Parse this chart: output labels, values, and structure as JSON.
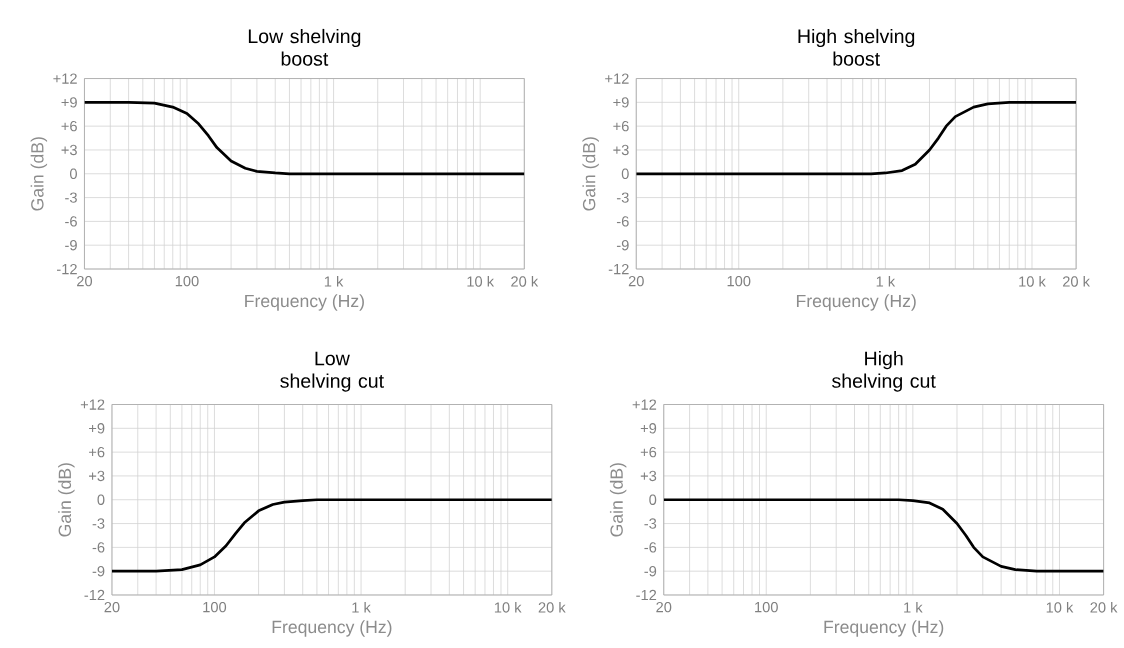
{
  "chart_data": [
    {
      "type": "line",
      "title": "Low shelving boost",
      "xlabel": "Frequency (Hz)",
      "ylabel": "Gain (dB)",
      "log": "x",
      "grid": true,
      "xlim": [
        20,
        20000
      ],
      "ylim": [
        -12,
        12
      ],
      "xticks": [
        20,
        100,
        {
          "value": 1000,
          "label": "1 k"
        },
        {
          "value": 10000,
          "label": "10 k"
        },
        {
          "value": 20000,
          "label": "20 k"
        }
      ],
      "yticks": [
        -12,
        -9,
        -6,
        -3,
        0,
        {
          "value": 3,
          "label": "+3"
        },
        {
          "value": 6,
          "label": "+6"
        },
        {
          "value": 9,
          "label": "+9"
        },
        {
          "value": 12,
          "label": "+12"
        }
      ],
      "x": [
        20,
        40,
        60,
        80,
        100,
        120,
        140,
        160,
        200,
        250,
        300,
        400,
        500,
        20000
      ],
      "series": [
        {
          "color": "#000000",
          "values": [
            9,
            9,
            8.9,
            8.4,
            7.6,
            6.3,
            4.8,
            3.3,
            1.6,
            0.7,
            0.3,
            0.1,
            0,
            0
          ]
        }
      ]
    },
    {
      "type": "line",
      "title": "High shelving boost",
      "xlabel": "Frequency (Hz)",
      "ylabel": "Gain (dB)",
      "log": "x",
      "grid": true,
      "xlim": [
        20,
        20000
      ],
      "ylim": [
        -12,
        12
      ],
      "xticks": [
        20,
        100,
        {
          "value": 1000,
          "label": "1 k"
        },
        {
          "value": 10000,
          "label": "10 k"
        },
        {
          "value": 20000,
          "label": "20 k"
        }
      ],
      "yticks": [
        -12,
        -9,
        -6,
        -3,
        0,
        {
          "value": 3,
          "label": "+3"
        },
        {
          "value": 6,
          "label": "+6"
        },
        {
          "value": 9,
          "label": "+9"
        },
        {
          "value": 12,
          "label": "+12"
        }
      ],
      "x": [
        20,
        800,
        1000,
        1300,
        1600,
        2000,
        2300,
        2600,
        3000,
        4000,
        5000,
        7000,
        20000
      ],
      "series": [
        {
          "color": "#000000",
          "values": [
            0,
            0,
            0.1,
            0.4,
            1.2,
            3,
            4.5,
            6,
            7.2,
            8.4,
            8.8,
            9,
            9
          ]
        }
      ]
    },
    {
      "type": "line",
      "title": "Low shelving cut",
      "xlabel": "Frequency (Hz)",
      "ylabel": "Gain (dB)",
      "log": "x",
      "grid": true,
      "xlim": [
        20,
        20000
      ],
      "ylim": [
        -12,
        12
      ],
      "xticks": [
        20,
        100,
        {
          "value": 1000,
          "label": "1 k"
        },
        {
          "value": 10000,
          "label": "10 k"
        },
        {
          "value": 20000,
          "label": "20 k"
        }
      ],
      "yticks": [
        -12,
        -9,
        -6,
        -3,
        0,
        {
          "value": 3,
          "label": "+3"
        },
        {
          "value": 6,
          "label": "+6"
        },
        {
          "value": 9,
          "label": "+9"
        },
        {
          "value": 12,
          "label": "+12"
        }
      ],
      "x": [
        20,
        40,
        60,
        80,
        100,
        120,
        140,
        160,
        200,
        250,
        300,
        400,
        500,
        20000
      ],
      "series": [
        {
          "color": "#000000",
          "values": [
            -9,
            -9,
            -8.8,
            -8.2,
            -7.2,
            -5.8,
            -4.2,
            -2.9,
            -1.4,
            -0.6,
            -0.3,
            -0.1,
            0,
            0
          ]
        }
      ]
    },
    {
      "type": "line",
      "title": "High shelving cut",
      "xlabel": "Frequency (Hz)",
      "ylabel": "Gain (dB)",
      "log": "x",
      "grid": true,
      "xlim": [
        20,
        20000
      ],
      "ylim": [
        -12,
        12
      ],
      "xticks": [
        20,
        100,
        {
          "value": 1000,
          "label": "1 k"
        },
        {
          "value": 10000,
          "label": "10 k"
        },
        {
          "value": 20000,
          "label": "20 k"
        }
      ],
      "yticks": [
        -12,
        -9,
        -6,
        -3,
        0,
        {
          "value": 3,
          "label": "+3"
        },
        {
          "value": 6,
          "label": "+6"
        },
        {
          "value": 9,
          "label": "+9"
        },
        {
          "value": 12,
          "label": "+12"
        }
      ],
      "x": [
        20,
        800,
        1000,
        1300,
        1600,
        2000,
        2300,
        2600,
        3000,
        4000,
        5000,
        7000,
        20000
      ],
      "series": [
        {
          "color": "#000000",
          "values": [
            0,
            0,
            -0.1,
            -0.4,
            -1.2,
            -3,
            -4.5,
            -6,
            -7.2,
            -8.4,
            -8.8,
            -9,
            -9
          ]
        }
      ]
    }
  ]
}
